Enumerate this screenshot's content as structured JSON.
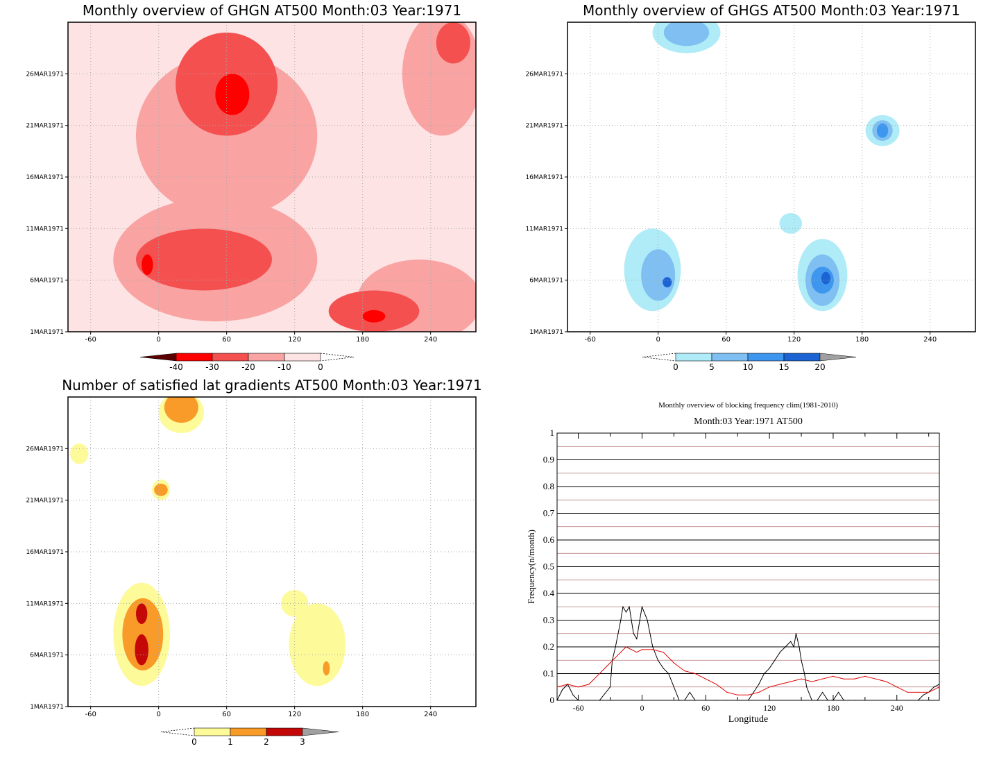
{
  "chart_data": [
    {
      "type": "heatmap",
      "title": "Monthly overview of GHGN AT500 Month:03 Year:1971",
      "x_ticks": [
        "-60",
        "0",
        "60",
        "120",
        "180",
        "240"
      ],
      "x_tick_values": [
        -60,
        0,
        60,
        120,
        180,
        240
      ],
      "xlim": [
        -80,
        280
      ],
      "y_ticks": [
        "1MAR1971",
        "6MAR1971",
        "11MAR1971",
        "16MAR1971",
        "21MAR1971",
        "26MAR1971"
      ],
      "y_tick_values": [
        1,
        6,
        11,
        16,
        21,
        26
      ],
      "ylim": [
        1,
        31
      ],
      "colorbar": {
        "labels": [
          "-40",
          "-30",
          "-20",
          "-10",
          "0"
        ],
        "levels": [
          -40,
          -30,
          -20,
          -10,
          0
        ],
        "colors": [
          "#5a0000",
          "#ff0000",
          "#f55050",
          "#f9a3a3",
          "#fde3e3"
        ],
        "extend_low_color": "#5a0000"
      },
      "background_color": "#fde3e3",
      "regions": [
        {
          "level": -10,
          "color": "#f9a3a3",
          "cx": 60,
          "cy": 20,
          "rx": 80,
          "ry": 8
        },
        {
          "level": -10,
          "color": "#f9a3a3",
          "cx": 50,
          "cy": 8,
          "rx": 90,
          "ry": 6
        },
        {
          "level": -10,
          "color": "#f9a3a3",
          "cx": 230,
          "cy": 4,
          "rx": 55,
          "ry": 4
        },
        {
          "level": -10,
          "color": "#f9a3a3",
          "cx": 250,
          "cy": 26,
          "rx": 35,
          "ry": 6
        },
        {
          "level": -20,
          "color": "#f55050",
          "cx": 60,
          "cy": 25,
          "rx": 45,
          "ry": 5
        },
        {
          "level": -20,
          "color": "#f55050",
          "cx": 40,
          "cy": 8,
          "rx": 60,
          "ry": 3
        },
        {
          "level": -20,
          "color": "#f55050",
          "cx": 190,
          "cy": 3,
          "rx": 40,
          "ry": 2
        },
        {
          "level": -20,
          "color": "#f55050",
          "cx": 260,
          "cy": 29,
          "rx": 15,
          "ry": 2
        },
        {
          "level": -30,
          "color": "#ff0000",
          "cx": 65,
          "cy": 24,
          "rx": 15,
          "ry": 2
        },
        {
          "level": -30,
          "color": "#ff0000",
          "cx": -10,
          "cy": 7.5,
          "rx": 5,
          "ry": 1
        },
        {
          "level": -30,
          "color": "#ff0000",
          "cx": 190,
          "cy": 2.5,
          "rx": 10,
          "ry": 0.6
        }
      ]
    },
    {
      "type": "heatmap",
      "title": "Monthly overview of GHGS AT500 Month:03 Year:1971",
      "x_ticks": [
        "-60",
        "0",
        "60",
        "120",
        "180",
        "240"
      ],
      "x_tick_values": [
        -60,
        0,
        60,
        120,
        180,
        240
      ],
      "xlim": [
        -80,
        280
      ],
      "y_ticks": [
        "1MAR1971",
        "6MAR1971",
        "11MAR1971",
        "16MAR1971",
        "21MAR1971",
        "26MAR1971"
      ],
      "y_tick_values": [
        1,
        6,
        11,
        16,
        21,
        26
      ],
      "ylim": [
        1,
        31
      ],
      "colorbar": {
        "labels": [
          "0",
          "5",
          "10",
          "15",
          "20"
        ],
        "levels": [
          0,
          5,
          10,
          15,
          20
        ],
        "colors": [
          "#b0ecf7",
          "#7fbff2",
          "#3f96ee",
          "#1c64d4"
        ],
        "extend_high_color": "#a0a0a0"
      },
      "background_color": "#ffffff",
      "regions": [
        {
          "level": 0,
          "color": "#b0ecf7",
          "cx": 25,
          "cy": 30,
          "rx": 30,
          "ry": 2
        },
        {
          "level": 0,
          "color": "#b0ecf7",
          "cx": -5,
          "cy": 7,
          "rx": 25,
          "ry": 4
        },
        {
          "level": 0,
          "color": "#b0ecf7",
          "cx": 145,
          "cy": 6.5,
          "rx": 22,
          "ry": 3.5
        },
        {
          "level": 0,
          "color": "#b0ecf7",
          "cx": 198,
          "cy": 20.5,
          "rx": 15,
          "ry": 1.5
        },
        {
          "level": 0,
          "color": "#b0ecf7",
          "cx": 117,
          "cy": 11.5,
          "rx": 10,
          "ry": 1
        },
        {
          "level": 5,
          "color": "#7fbff2",
          "cx": 25,
          "cy": 30,
          "rx": 20,
          "ry": 1.3
        },
        {
          "level": 5,
          "color": "#7fbff2",
          "cx": 0,
          "cy": 6.5,
          "rx": 15,
          "ry": 2.5
        },
        {
          "level": 5,
          "color": "#7fbff2",
          "cx": 145,
          "cy": 6,
          "rx": 15,
          "ry": 2.5
        },
        {
          "level": 5,
          "color": "#7fbff2",
          "cx": 198,
          "cy": 20.5,
          "rx": 9,
          "ry": 1
        },
        {
          "level": 10,
          "color": "#3f96ee",
          "cx": 145,
          "cy": 6,
          "rx": 10,
          "ry": 1.3
        },
        {
          "level": 10,
          "color": "#3f96ee",
          "cx": 198,
          "cy": 20.5,
          "rx": 5,
          "ry": 0.7
        },
        {
          "level": 15,
          "color": "#1c64d4",
          "cx": 8,
          "cy": 5.8,
          "rx": 4,
          "ry": 0.5
        },
        {
          "level": 15,
          "color": "#1c64d4",
          "cx": 148,
          "cy": 6.2,
          "rx": 4,
          "ry": 0.6
        }
      ]
    },
    {
      "type": "heatmap",
      "title": "Number of satisfied lat gradients AT500 Month:03 Year:1971",
      "x_ticks": [
        "-60",
        "0",
        "60",
        "120",
        "180",
        "240"
      ],
      "x_tick_values": [
        -60,
        0,
        60,
        120,
        180,
        240
      ],
      "xlim": [
        -80,
        280
      ],
      "y_ticks": [
        "1MAR1971",
        "6MAR1971",
        "11MAR1971",
        "16MAR1971",
        "21MAR1971",
        "26MAR1971"
      ],
      "y_tick_values": [
        1,
        6,
        11,
        16,
        21,
        26
      ],
      "ylim": [
        1,
        31
      ],
      "colorbar": {
        "labels": [
          "0",
          "1",
          "2",
          "3"
        ],
        "levels": [
          0,
          1,
          2,
          3
        ],
        "colors": [
          "#fdfa9a",
          "#f99b28",
          "#c40808"
        ],
        "extend_high_color": "#a0a0a0"
      },
      "background_color": "#ffffff",
      "regions": [
        {
          "level": 0,
          "color": "#fdfa9a",
          "cx": -15,
          "cy": 8,
          "rx": 25,
          "ry": 5
        },
        {
          "level": 0,
          "color": "#fdfa9a",
          "cx": 140,
          "cy": 7,
          "rx": 25,
          "ry": 4
        },
        {
          "level": 0,
          "color": "#fdfa9a",
          "cx": 20,
          "cy": 29.5,
          "rx": 20,
          "ry": 2
        },
        {
          "level": 0,
          "color": "#fdfa9a",
          "cx": 2,
          "cy": 22,
          "rx": 8,
          "ry": 1
        },
        {
          "level": 0,
          "color": "#fdfa9a",
          "cx": 120,
          "cy": 11,
          "rx": 12,
          "ry": 1.3
        },
        {
          "level": 0,
          "color": "#fdfa9a",
          "cx": -70,
          "cy": 25.5,
          "rx": 8,
          "ry": 1
        },
        {
          "level": 1,
          "color": "#f99b28",
          "cx": -14,
          "cy": 8,
          "rx": 18,
          "ry": 3.5
        },
        {
          "level": 1,
          "color": "#f99b28",
          "cx": 20,
          "cy": 30,
          "rx": 15,
          "ry": 1.5
        },
        {
          "level": 1,
          "color": "#f99b28",
          "cx": 2,
          "cy": 22,
          "rx": 6,
          "ry": 0.6
        },
        {
          "level": 1,
          "color": "#f99b28",
          "cx": 148,
          "cy": 4.7,
          "rx": 3,
          "ry": 0.7
        },
        {
          "level": 2,
          "color": "#c40808",
          "cx": -15,
          "cy": 10,
          "rx": 5,
          "ry": 1
        },
        {
          "level": 2,
          "color": "#c40808",
          "cx": -15,
          "cy": 6.5,
          "rx": 6,
          "ry": 1.5
        }
      ]
    },
    {
      "type": "line",
      "title": "Monthly overview of blocking frequency clim(1981-2010)",
      "subtitle": "Month:03 Year:1971  AT500",
      "xlabel": "Longitude",
      "ylabel": "Frequency(n/month)",
      "x_ticks": [
        "-60",
        "0",
        "60",
        "120",
        "180",
        "240"
      ],
      "x_tick_values": [
        -60,
        0,
        60,
        120,
        180,
        240
      ],
      "xlim": [
        -80,
        280
      ],
      "y_ticks": [
        "0",
        "0.1",
        "0.2",
        "0.3",
        "0.4",
        "0.5",
        "0.6",
        "0.7",
        "0.8",
        "0.9",
        "1"
      ],
      "ylim": [
        0,
        1
      ],
      "grid": true,
      "series": [
        {
          "color": "#000000",
          "x": [
            -80,
            -75,
            -70,
            -65,
            -60,
            -50,
            -40,
            -30,
            -28,
            -25,
            -20,
            -18,
            -15,
            -12,
            -10,
            -8,
            -5,
            0,
            2,
            5,
            10,
            15,
            20,
            25,
            30,
            35,
            40,
            45,
            50,
            60,
            70,
            80,
            90,
            100,
            110,
            115,
            120,
            125,
            130,
            135,
            140,
            143,
            145,
            148,
            150,
            153,
            155,
            160,
            165,
            170,
            175,
            180,
            185,
            190,
            195,
            200,
            210,
            220,
            230,
            240,
            250,
            260,
            265,
            270,
            275,
            280
          ],
          "y": [
            0,
            0.04,
            0.06,
            0.02,
            0,
            0,
            0,
            0.05,
            0.15,
            0.2,
            0.3,
            0.35,
            0.33,
            0.35,
            0.3,
            0.25,
            0.23,
            0.35,
            0.33,
            0.3,
            0.2,
            0.15,
            0.12,
            0.1,
            0.05,
            0,
            0,
            0.03,
            0,
            0,
            0,
            0,
            0,
            0,
            0.06,
            0.1,
            0.12,
            0.15,
            0.18,
            0.2,
            0.22,
            0.2,
            0.25,
            0.2,
            0.15,
            0.1,
            0.05,
            0,
            0,
            0.03,
            0,
            0,
            0.03,
            0,
            0,
            0,
            0,
            0,
            0,
            0,
            0,
            0,
            0.02,
            0.03,
            0.05,
            0.06
          ]
        },
        {
          "color": "#e00000",
          "x": [
            -80,
            -70,
            -60,
            -50,
            -40,
            -30,
            -20,
            -15,
            -10,
            -5,
            0,
            10,
            20,
            30,
            40,
            50,
            60,
            70,
            80,
            90,
            100,
            110,
            120,
            130,
            140,
            150,
            160,
            170,
            180,
            190,
            200,
            210,
            220,
            230,
            240,
            250,
            260,
            270,
            280
          ],
          "y": [
            0.05,
            0.06,
            0.05,
            0.06,
            0.1,
            0.14,
            0.18,
            0.2,
            0.19,
            0.18,
            0.19,
            0.19,
            0.18,
            0.14,
            0.11,
            0.1,
            0.08,
            0.06,
            0.03,
            0.02,
            0.02,
            0.03,
            0.05,
            0.06,
            0.07,
            0.08,
            0.07,
            0.08,
            0.09,
            0.08,
            0.08,
            0.09,
            0.08,
            0.07,
            0.05,
            0.03,
            0.03,
            0.03,
            0.05
          ]
        }
      ]
    }
  ]
}
